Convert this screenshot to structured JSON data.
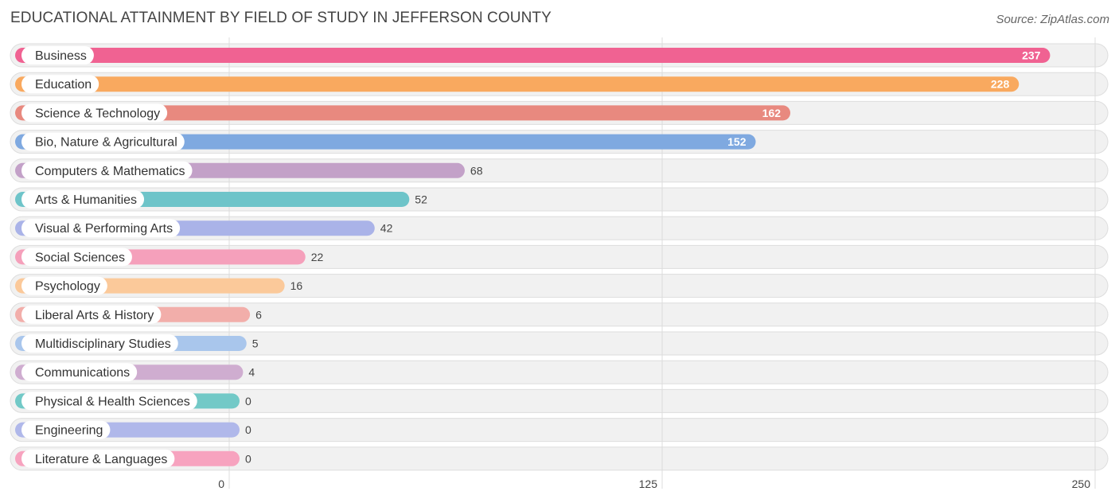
{
  "chart_data": {
    "type": "bar",
    "orientation": "horizontal",
    "title": "EDUCATIONAL ATTAINMENT BY FIELD OF STUDY IN JEFFERSON COUNTY",
    "source": "Source: ZipAtlas.com",
    "xlim": [
      0,
      250
    ],
    "ticks": [
      {
        "value": 0,
        "label": "0"
      },
      {
        "value": 125,
        "label": "125"
      },
      {
        "value": 250,
        "label": "250"
      }
    ],
    "grid": true,
    "categories": [
      "Business",
      "Education",
      "Science & Technology",
      "Bio, Nature & Agricultural",
      "Computers & Mathematics",
      "Arts & Humanities",
      "Visual & Performing Arts",
      "Social Sciences",
      "Psychology",
      "Liberal Arts & History",
      "Multidisciplinary Studies",
      "Communications",
      "Physical & Health Sciences",
      "Engineering",
      "Literature & Languages"
    ],
    "values": [
      237,
      228,
      162,
      152,
      68,
      52,
      42,
      22,
      16,
      6,
      5,
      4,
      0,
      0,
      0
    ],
    "value_labels": [
      "237",
      "228",
      "162",
      "152",
      "68",
      "52",
      "42",
      "22",
      "16",
      "6",
      "5",
      "4",
      "0",
      "0",
      "0"
    ],
    "colors": [
      "#f06292",
      "#f9a95f",
      "#e8897f",
      "#7fa9e0",
      "#c3a1c8",
      "#6ec4c9",
      "#aab3e8",
      "#f5a0bb",
      "#fbc99a",
      "#f2aeaa",
      "#a9c6ec",
      "#cfadd0",
      "#72c9c7",
      "#b0b8ea",
      "#f7a3bf"
    ]
  }
}
